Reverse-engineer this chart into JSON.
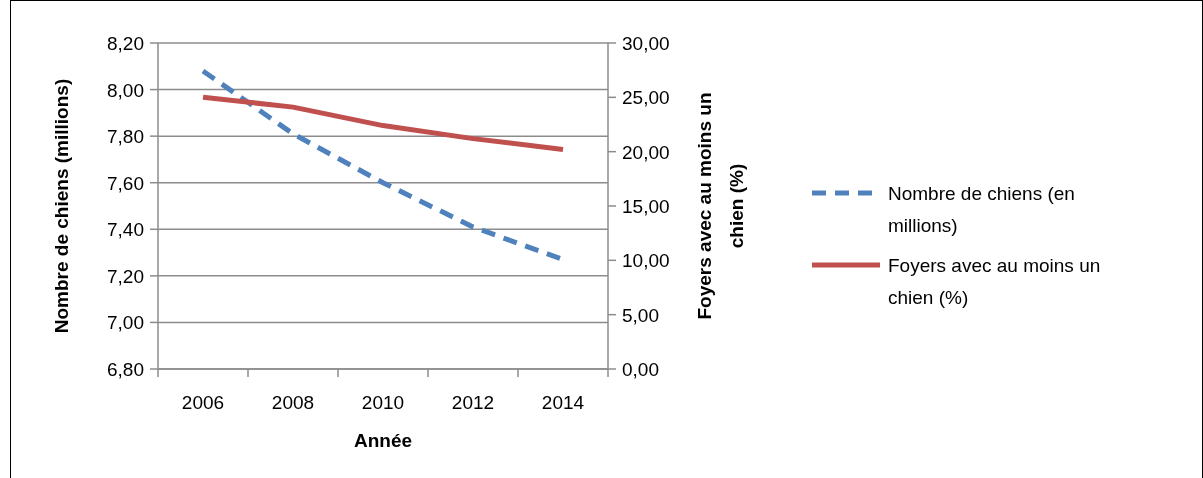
{
  "chart_data": {
    "type": "line",
    "xlabel": "Année",
    "ylabel": "Nombre de chiens (millions)",
    "y2label": "Foyers avec au moins un chien (%)",
    "categories": [
      "2006",
      "2008",
      "2010",
      "2012",
      "2014"
    ],
    "series": [
      {
        "name": "Nombre de chiens (en millions)",
        "color": "#4f81bd",
        "line_style": "dashed",
        "values": [
          8.08,
          7.81,
          7.6,
          7.41,
          7.27
        ]
      },
      {
        "name": "Foyers avec au moins un chien (%)",
        "color": "#c0504d",
        "line_style": "solid",
        "axis": "y2",
        "values": [
          25.0,
          24.1,
          22.4,
          21.2,
          20.2
        ]
      }
    ],
    "ylim": [
      6.8,
      8.2
    ],
    "yticks": [
      {
        "value": 6.8,
        "label": "6,80"
      },
      {
        "value": 7.0,
        "label": "7,00"
      },
      {
        "value": 7.2,
        "label": "7,20"
      },
      {
        "value": 7.4,
        "label": "7,40"
      },
      {
        "value": 7.6,
        "label": "7,60"
      },
      {
        "value": 7.8,
        "label": "7,80"
      },
      {
        "value": 8.0,
        "label": "8,00"
      },
      {
        "value": 8.2,
        "label": "8,20"
      }
    ],
    "y2lim": [
      0,
      30
    ],
    "y2ticks": [
      {
        "value": 0,
        "label": "0,00"
      },
      {
        "value": 5,
        "label": "5,00"
      },
      {
        "value": 10,
        "label": "10,00"
      },
      {
        "value": 15,
        "label": "15,00"
      },
      {
        "value": 20,
        "label": "20,00"
      },
      {
        "value": 25,
        "label": "25,00"
      },
      {
        "value": 30,
        "label": "30,00"
      }
    ],
    "grid": "y",
    "legend": "right",
    "marker": "none"
  }
}
